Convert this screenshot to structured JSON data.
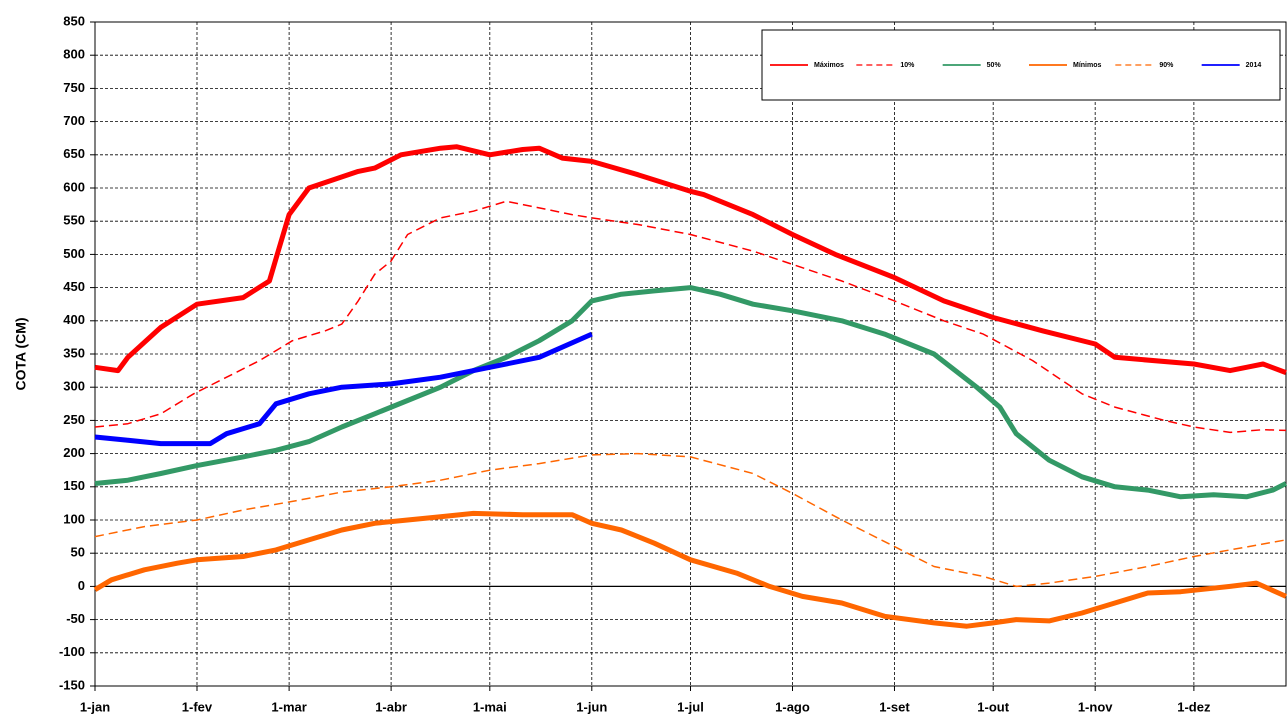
{
  "chart_data": {
    "type": "line",
    "y_label": "COTA (CM)",
    "xlim": [
      0,
      362
    ],
    "xticks": [
      {
        "value": 0,
        "label": "1-jan"
      },
      {
        "value": 31,
        "label": "1-fev"
      },
      {
        "value": 59,
        "label": "1-mar"
      },
      {
        "value": 90,
        "label": "1-abr"
      },
      {
        "value": 120,
        "label": "1-mai"
      },
      {
        "value": 151,
        "label": "1-jun"
      },
      {
        "value": 181,
        "label": "1-jul"
      },
      {
        "value": 212,
        "label": "1-ago"
      },
      {
        "value": 243,
        "label": "1-set"
      },
      {
        "value": 273,
        "label": "1-out"
      },
      {
        "value": 304,
        "label": "1-nov"
      },
      {
        "value": 334,
        "label": "1-dez"
      }
    ],
    "ylim": [
      -150,
      850
    ],
    "yticks": [
      -150,
      -100,
      -50,
      0,
      50,
      100,
      150,
      200,
      250,
      300,
      350,
      400,
      450,
      500,
      550,
      600,
      650,
      700,
      750,
      800,
      850
    ],
    "grid": true,
    "legend": "top-right",
    "series": [
      {
        "name": "Máximos",
        "color": "#ff0000",
        "dashed": false,
        "x": [
          0,
          7,
          10,
          20,
          31,
          45,
          53,
          56,
          59,
          65,
          80,
          85,
          93,
          105,
          110,
          120,
          130,
          135,
          142,
          151,
          165,
          181,
          185,
          200,
          212,
          225,
          243,
          258,
          273,
          288,
          304,
          310,
          334,
          345,
          350,
          355,
          362
        ],
        "values": [
          330,
          325,
          345,
          390,
          425,
          435,
          460,
          510,
          560,
          600,
          625,
          630,
          650,
          660,
          662,
          650,
          658,
          660,
          645,
          640,
          620,
          595,
          590,
          560,
          530,
          500,
          465,
          430,
          405,
          385,
          365,
          345,
          335,
          325,
          330,
          335,
          322
        ]
      },
      {
        "name": "10%",
        "color": "#ff0000",
        "dashed": true,
        "x": [
          0,
          10,
          20,
          30,
          40,
          50,
          60,
          70,
          75,
          80,
          85,
          90,
          95,
          105,
          115,
          125,
          135,
          145,
          151,
          165,
          181,
          200,
          212,
          227,
          243,
          258,
          270,
          285,
          300,
          310,
          325,
          334,
          345,
          355,
          362
        ],
        "values": [
          240,
          245,
          260,
          290,
          315,
          340,
          370,
          385,
          395,
          430,
          470,
          490,
          530,
          555,
          565,
          580,
          570,
          560,
          555,
          545,
          530,
          505,
          485,
          460,
          430,
          400,
          380,
          340,
          290,
          270,
          250,
          240,
          232,
          236,
          235
        ]
      },
      {
        "name": "50%",
        "color": "#339966",
        "dashed": false,
        "x": [
          0,
          10,
          20,
          31,
          45,
          55,
          65,
          75,
          85,
          95,
          105,
          115,
          125,
          135,
          145,
          151,
          160,
          170,
          181,
          190,
          200,
          212,
          227,
          240,
          255,
          268,
          275,
          280,
          290,
          300,
          310,
          320,
          330,
          340,
          350,
          358,
          362
        ],
        "values": [
          155,
          160,
          170,
          182,
          195,
          205,
          218,
          240,
          260,
          280,
          300,
          325,
          345,
          370,
          400,
          430,
          440,
          445,
          450,
          440,
          425,
          415,
          400,
          380,
          350,
          300,
          270,
          230,
          190,
          165,
          150,
          145,
          135,
          138,
          135,
          145,
          155
        ]
      },
      {
        "name": "Mínimos",
        "color": "#ff6600",
        "dashed": false,
        "x": [
          0,
          5,
          15,
          25,
          31,
          45,
          55,
          65,
          75,
          85,
          95,
          105,
          115,
          130,
          145,
          151,
          160,
          170,
          181,
          195,
          205,
          215,
          227,
          240,
          255,
          265,
          273,
          280,
          290,
          300,
          310,
          320,
          330,
          345,
          353,
          362
        ],
        "values": [
          -5,
          10,
          25,
          35,
          40,
          45,
          55,
          70,
          85,
          95,
          100,
          105,
          110,
          108,
          108,
          95,
          85,
          65,
          40,
          20,
          0,
          -15,
          -25,
          -45,
          -55,
          -60,
          -55,
          -50,
          -52,
          -40,
          -25,
          -10,
          -8,
          0,
          5,
          -15
        ]
      },
      {
        "name": "90%",
        "color": "#ff6600",
        "dashed": true,
        "x": [
          0,
          15,
          31,
          45,
          60,
          75,
          90,
          105,
          120,
          135,
          151,
          165,
          181,
          200,
          212,
          227,
          243,
          255,
          270,
          280,
          290,
          304,
          320,
          334,
          345,
          362
        ],
        "values": [
          75,
          90,
          100,
          115,
          128,
          142,
          150,
          160,
          175,
          185,
          198,
          200,
          195,
          170,
          140,
          100,
          60,
          30,
          15,
          0,
          5,
          15,
          30,
          45,
          55,
          70
        ]
      },
      {
        "name": "2014",
        "color": "#0000ff",
        "dashed": false,
        "x": [
          0,
          10,
          20,
          35,
          40,
          50,
          55,
          65,
          75,
          90,
          105,
          120,
          135,
          151
        ],
        "values": [
          225,
          220,
          215,
          215,
          230,
          245,
          275,
          290,
          300,
          305,
          315,
          330,
          345,
          380
        ]
      }
    ]
  }
}
